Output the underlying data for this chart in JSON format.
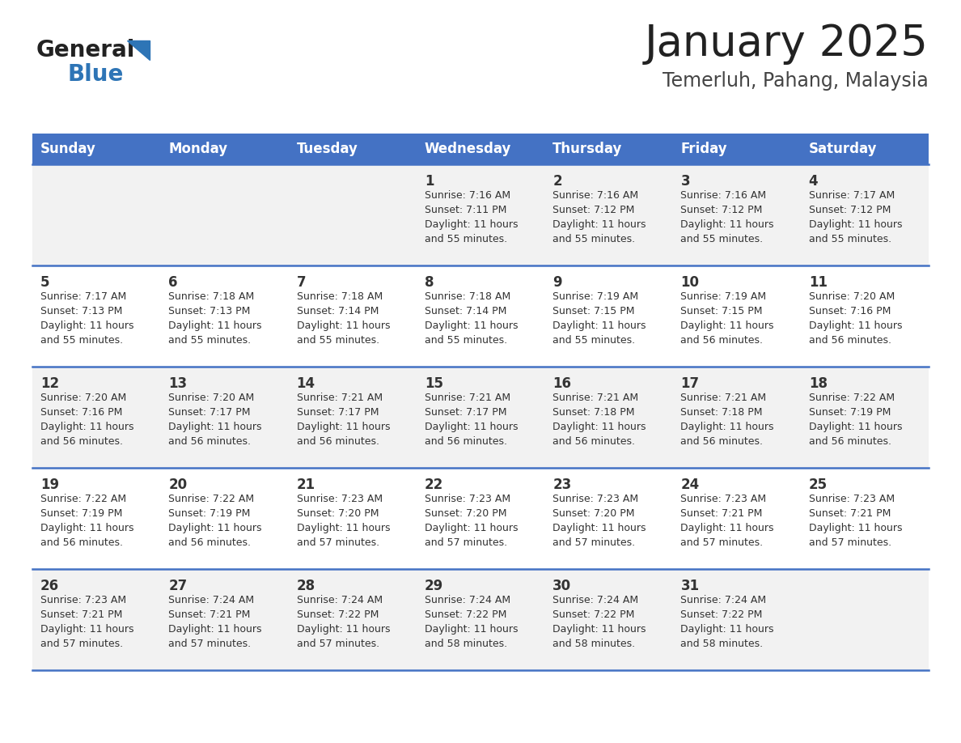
{
  "title": "January 2025",
  "subtitle": "Temerluh, Pahang, Malaysia",
  "days_of_week": [
    "Sunday",
    "Monday",
    "Tuesday",
    "Wednesday",
    "Thursday",
    "Friday",
    "Saturday"
  ],
  "header_bg": "#4472C4",
  "header_text": "#FFFFFF",
  "row_bg_odd": "#F2F2F2",
  "row_bg_even": "#FFFFFF",
  "divider_color": "#4472C4",
  "text_color": "#333333",
  "title_color": "#222222",
  "subtitle_color": "#444444",
  "logo_general_color": "#222222",
  "logo_blue_color": "#2E75B6",
  "calendar": [
    [
      {
        "day": "",
        "info": ""
      },
      {
        "day": "",
        "info": ""
      },
      {
        "day": "",
        "info": ""
      },
      {
        "day": "1",
        "info": "Sunrise: 7:16 AM\nSunset: 7:11 PM\nDaylight: 11 hours\nand 55 minutes."
      },
      {
        "day": "2",
        "info": "Sunrise: 7:16 AM\nSunset: 7:12 PM\nDaylight: 11 hours\nand 55 minutes."
      },
      {
        "day": "3",
        "info": "Sunrise: 7:16 AM\nSunset: 7:12 PM\nDaylight: 11 hours\nand 55 minutes."
      },
      {
        "day": "4",
        "info": "Sunrise: 7:17 AM\nSunset: 7:12 PM\nDaylight: 11 hours\nand 55 minutes."
      }
    ],
    [
      {
        "day": "5",
        "info": "Sunrise: 7:17 AM\nSunset: 7:13 PM\nDaylight: 11 hours\nand 55 minutes."
      },
      {
        "day": "6",
        "info": "Sunrise: 7:18 AM\nSunset: 7:13 PM\nDaylight: 11 hours\nand 55 minutes."
      },
      {
        "day": "7",
        "info": "Sunrise: 7:18 AM\nSunset: 7:14 PM\nDaylight: 11 hours\nand 55 minutes."
      },
      {
        "day": "8",
        "info": "Sunrise: 7:18 AM\nSunset: 7:14 PM\nDaylight: 11 hours\nand 55 minutes."
      },
      {
        "day": "9",
        "info": "Sunrise: 7:19 AM\nSunset: 7:15 PM\nDaylight: 11 hours\nand 55 minutes."
      },
      {
        "day": "10",
        "info": "Sunrise: 7:19 AM\nSunset: 7:15 PM\nDaylight: 11 hours\nand 56 minutes."
      },
      {
        "day": "11",
        "info": "Sunrise: 7:20 AM\nSunset: 7:16 PM\nDaylight: 11 hours\nand 56 minutes."
      }
    ],
    [
      {
        "day": "12",
        "info": "Sunrise: 7:20 AM\nSunset: 7:16 PM\nDaylight: 11 hours\nand 56 minutes."
      },
      {
        "day": "13",
        "info": "Sunrise: 7:20 AM\nSunset: 7:17 PM\nDaylight: 11 hours\nand 56 minutes."
      },
      {
        "day": "14",
        "info": "Sunrise: 7:21 AM\nSunset: 7:17 PM\nDaylight: 11 hours\nand 56 minutes."
      },
      {
        "day": "15",
        "info": "Sunrise: 7:21 AM\nSunset: 7:17 PM\nDaylight: 11 hours\nand 56 minutes."
      },
      {
        "day": "16",
        "info": "Sunrise: 7:21 AM\nSunset: 7:18 PM\nDaylight: 11 hours\nand 56 minutes."
      },
      {
        "day": "17",
        "info": "Sunrise: 7:21 AM\nSunset: 7:18 PM\nDaylight: 11 hours\nand 56 minutes."
      },
      {
        "day": "18",
        "info": "Sunrise: 7:22 AM\nSunset: 7:19 PM\nDaylight: 11 hours\nand 56 minutes."
      }
    ],
    [
      {
        "day": "19",
        "info": "Sunrise: 7:22 AM\nSunset: 7:19 PM\nDaylight: 11 hours\nand 56 minutes."
      },
      {
        "day": "20",
        "info": "Sunrise: 7:22 AM\nSunset: 7:19 PM\nDaylight: 11 hours\nand 56 minutes."
      },
      {
        "day": "21",
        "info": "Sunrise: 7:23 AM\nSunset: 7:20 PM\nDaylight: 11 hours\nand 57 minutes."
      },
      {
        "day": "22",
        "info": "Sunrise: 7:23 AM\nSunset: 7:20 PM\nDaylight: 11 hours\nand 57 minutes."
      },
      {
        "day": "23",
        "info": "Sunrise: 7:23 AM\nSunset: 7:20 PM\nDaylight: 11 hours\nand 57 minutes."
      },
      {
        "day": "24",
        "info": "Sunrise: 7:23 AM\nSunset: 7:21 PM\nDaylight: 11 hours\nand 57 minutes."
      },
      {
        "day": "25",
        "info": "Sunrise: 7:23 AM\nSunset: 7:21 PM\nDaylight: 11 hours\nand 57 minutes."
      }
    ],
    [
      {
        "day": "26",
        "info": "Sunrise: 7:23 AM\nSunset: 7:21 PM\nDaylight: 11 hours\nand 57 minutes."
      },
      {
        "day": "27",
        "info": "Sunrise: 7:24 AM\nSunset: 7:21 PM\nDaylight: 11 hours\nand 57 minutes."
      },
      {
        "day": "28",
        "info": "Sunrise: 7:24 AM\nSunset: 7:22 PM\nDaylight: 11 hours\nand 57 minutes."
      },
      {
        "day": "29",
        "info": "Sunrise: 7:24 AM\nSunset: 7:22 PM\nDaylight: 11 hours\nand 58 minutes."
      },
      {
        "day": "30",
        "info": "Sunrise: 7:24 AM\nSunset: 7:22 PM\nDaylight: 11 hours\nand 58 minutes."
      },
      {
        "day": "31",
        "info": "Sunrise: 7:24 AM\nSunset: 7:22 PM\nDaylight: 11 hours\nand 58 minutes."
      },
      {
        "day": "",
        "info": ""
      }
    ]
  ]
}
